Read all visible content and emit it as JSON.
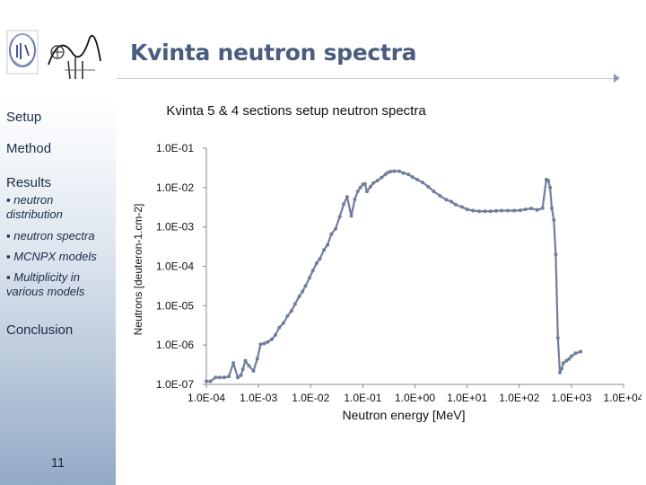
{
  "slide": {
    "title": "Kvinta neutron spectra",
    "page_number": "11"
  },
  "sidebar": {
    "items": [
      {
        "label": "Setup"
      },
      {
        "label": "Method"
      },
      {
        "label": "Results"
      },
      {
        "label": "neutron distribution"
      },
      {
        "label": "neutron spectra"
      },
      {
        "label": "MCNPX models"
      },
      {
        "label": "Multiplicity in various models"
      },
      {
        "label": "Conclusion"
      }
    ]
  },
  "colors": {
    "title": "#4a5d7e",
    "series": "#6e7e9c",
    "sidebar_bottom": "#93aac6"
  },
  "chart_data": {
    "type": "line",
    "title": "Kvinta 5 & 4 sections setup neutron spectra",
    "xlabel": "Neutron energy [MeV]",
    "ylabel": "Neutrons [deuteron-1.cm-2]",
    "x_scale": "log",
    "y_scale": "log",
    "xlim": [
      0.0001,
      10000
    ],
    "ylim": [
      1e-07,
      0.1
    ],
    "x_ticks": [
      "1.0E-04",
      "1.0E-03",
      "1.0E-02",
      "1.0E-01",
      "1.0E+00",
      "1.0E+01",
      "1.0E+02",
      "1.0E+03",
      "1.0E+04"
    ],
    "y_ticks": [
      "1.0E-07",
      "1.0E-06",
      "1.0E-05",
      "1.0E-04",
      "1.0E-03",
      "1.0E-02",
      "1.0E-01"
    ],
    "grid": false,
    "legend": false,
    "series": [
      {
        "x": [
          0.0001,
          0.00012,
          0.00015,
          0.00018,
          0.00022,
          0.00027,
          0.00033,
          0.0004,
          0.00046,
          0.0005,
          0.00056,
          0.00065,
          0.0008,
          0.00095,
          0.0011,
          0.0013,
          0.0015,
          0.0018,
          0.0021,
          0.0025,
          0.003,
          0.0036,
          0.0043,
          0.005,
          0.006,
          0.007,
          0.008,
          0.0095,
          0.011,
          0.013,
          0.015,
          0.018,
          0.021,
          0.025,
          0.03,
          0.036,
          0.043,
          0.05,
          0.06,
          0.07,
          0.08,
          0.09,
          0.1,
          0.11,
          0.12,
          0.14,
          0.16,
          0.19,
          0.23,
          0.27,
          0.3,
          0.34,
          0.4,
          0.5,
          0.6,
          0.75,
          0.9,
          1.1,
          1.4,
          1.8,
          2.3,
          3,
          4,
          5,
          6,
          8,
          10,
          13,
          17,
          22,
          28,
          36,
          46,
          60,
          80,
          105,
          130,
          170,
          220,
          280,
          330,
          360,
          390,
          420,
          460,
          500,
          550,
          600,
          650,
          700,
          800,
          900,
          1000,
          1200,
          1500
        ],
        "y": [
          1.2e-07,
          1.2e-07,
          1.5e-07,
          1.5e-07,
          1.5e-07,
          1.6e-07,
          3.5e-07,
          1.5e-07,
          1.7e-07,
          2.4e-07,
          4e-07,
          3e-07,
          2.2e-07,
          4.5e-07,
          1.05e-06,
          1.1e-06,
          1.2e-06,
          1.4e-06,
          1.8e-06,
          2.8e-06,
          3.6e-06,
          5.5e-06,
          7.4e-06,
          1.1e-05,
          1.7e-05,
          2.3e-05,
          3.2e-05,
          5.1e-05,
          7.8e-05,
          0.00012,
          0.000155,
          0.00026,
          0.00035,
          0.00066,
          0.0009,
          0.0018,
          0.0038,
          0.0058,
          0.0019,
          0.005,
          0.008,
          0.01,
          0.012,
          0.0125,
          0.008,
          0.0105,
          0.013,
          0.015,
          0.018,
          0.0215,
          0.024,
          0.0255,
          0.026,
          0.026,
          0.0235,
          0.0215,
          0.0185,
          0.016,
          0.0135,
          0.0105,
          0.008,
          0.0062,
          0.0049,
          0.0044,
          0.0037,
          0.0032,
          0.0028,
          0.0026,
          0.0025,
          0.0025,
          0.0025,
          0.00255,
          0.0026,
          0.0026,
          0.0026,
          0.00265,
          0.0028,
          0.00295,
          0.0027,
          0.003,
          0.016,
          0.015,
          0.01,
          0.003,
          0.0015,
          0.0002,
          1.5e-06,
          2e-07,
          2.5e-07,
          3.5e-07,
          4e-07,
          4.4e-07,
          5.2e-07,
          6.2e-07,
          6.8e-07
        ]
      }
    ]
  }
}
